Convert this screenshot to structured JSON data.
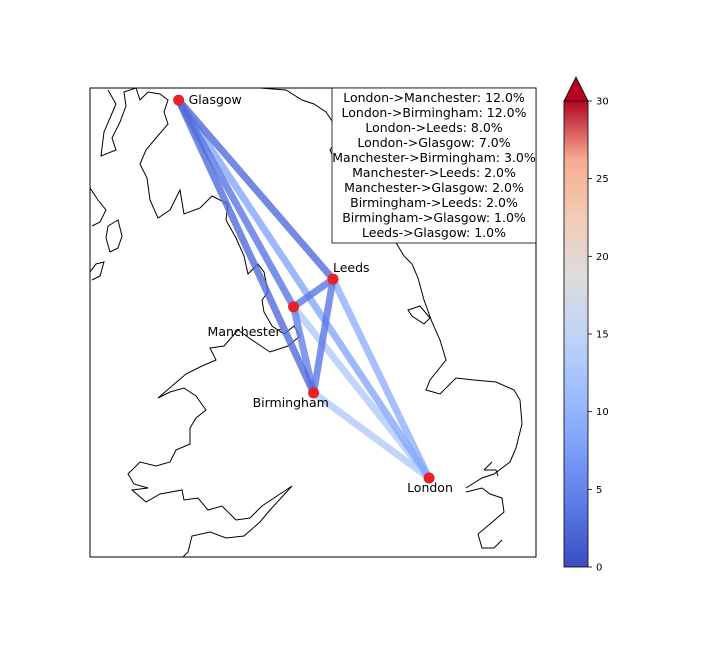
{
  "cities": [
    {
      "name": "Glasgow",
      "lon": -4.25,
      "lat": 55.86
    },
    {
      "name": "Leeds",
      "lon": -1.55,
      "lat": 53.8
    },
    {
      "name": "Manchester",
      "lon": -2.24,
      "lat": 53.48
    },
    {
      "name": "Birmingham",
      "lon": -1.89,
      "lat": 52.49
    },
    {
      "name": "London",
      "lon": 0.13,
      "lat": 51.51
    }
  ],
  "routes": [
    {
      "from": "London",
      "to": "Manchester",
      "pct": 12.0
    },
    {
      "from": "London",
      "to": "Birmingham",
      "pct": 12.0
    },
    {
      "from": "London",
      "to": "Leeds",
      "pct": 8.0
    },
    {
      "from": "London",
      "to": "Glasgow",
      "pct": 7.0
    },
    {
      "from": "Manchester",
      "to": "Birmingham",
      "pct": 3.0
    },
    {
      "from": "Manchester",
      "to": "Leeds",
      "pct": 2.0
    },
    {
      "from": "Manchester",
      "to": "Glasgow",
      "pct": 2.0
    },
    {
      "from": "Birmingham",
      "to": "Leeds",
      "pct": 2.0
    },
    {
      "from": "Birmingham",
      "to": "Glasgow",
      "pct": 1.0
    },
    {
      "from": "Leeds",
      "to": "Glasgow",
      "pct": 1.0
    }
  ],
  "legend_lines": [
    "London->Manchester: 12.0%",
    "London->Birmingham: 12.0%",
    "London->Leeds: 8.0%",
    "London->Glasgow: 7.0%",
    "Manchester->Birmingham: 3.0%",
    "Manchester->Leeds: 2.0%",
    "Manchester->Glasgow: 2.0%",
    "Birmingham->Leeds: 2.0%",
    "Birmingham->Glasgow: 1.0%",
    "Leeds->Glasgow: 1.0%"
  ],
  "colorbar": {
    "min": 0,
    "max": 30,
    "ticks": [
      "0",
      "5",
      "10",
      "15",
      "20",
      "25",
      "30"
    ],
    "colormap": "coolwarm",
    "extend": "max"
  },
  "map_extent": {
    "lon": [
      -5.8,
      2.0
    ],
    "lat": [
      50.6,
      56.0
    ]
  },
  "colors": {
    "city_marker": "#e8202a",
    "coastline": "#000000"
  }
}
